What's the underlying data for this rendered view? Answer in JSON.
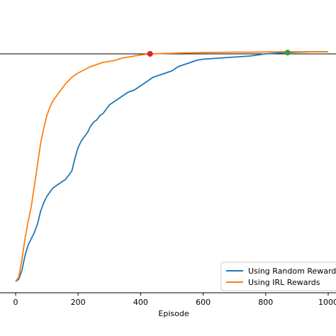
{
  "chart_data": {
    "type": "line",
    "xlabel": "Episode",
    "ylabel": "",
    "title": "",
    "xlim": [
      -5,
      1010
    ],
    "ylim": [
      0,
      1.12
    ],
    "x_ticks": [
      0,
      200,
      400,
      600,
      800,
      1000
    ],
    "x_tick_labels": [
      "0",
      "200",
      "400",
      "600",
      "800",
      "1000"
    ],
    "horizontal_line": {
      "y": 1.07
    },
    "legend": {
      "position": "lower-right"
    },
    "series": [
      {
        "name": "Using Random Reward",
        "color": "#1f77b4",
        "x": [
          0,
          10,
          20,
          30,
          40,
          50,
          60,
          70,
          80,
          90,
          100,
          110,
          120,
          130,
          140,
          150,
          160,
          170,
          180,
          190,
          200,
          210,
          220,
          230,
          240,
          250,
          260,
          270,
          280,
          290,
          300,
          320,
          340,
          360,
          380,
          400,
          420,
          440,
          460,
          480,
          500,
          520,
          540,
          560,
          580,
          600,
          650,
          700,
          750,
          800,
          850,
          870,
          900,
          950,
          1000
        ],
        "y": [
          0.0,
          0.01,
          0.05,
          0.12,
          0.17,
          0.2,
          0.23,
          0.27,
          0.33,
          0.37,
          0.4,
          0.42,
          0.44,
          0.45,
          0.46,
          0.47,
          0.48,
          0.5,
          0.52,
          0.58,
          0.63,
          0.66,
          0.68,
          0.7,
          0.73,
          0.75,
          0.76,
          0.78,
          0.79,
          0.81,
          0.83,
          0.85,
          0.87,
          0.89,
          0.9,
          0.92,
          0.94,
          0.96,
          0.97,
          0.98,
          0.99,
          1.01,
          1.02,
          1.03,
          1.04,
          1.045,
          1.05,
          1.055,
          1.06,
          1.07,
          1.075,
          1.076,
          1.078,
          1.08,
          1.08
        ]
      },
      {
        "name": "Using IRL Rewards",
        "color": "#ff7f0e",
        "x": [
          0,
          10,
          20,
          30,
          40,
          50,
          60,
          70,
          80,
          90,
          100,
          110,
          120,
          130,
          140,
          150,
          160,
          170,
          180,
          190,
          200,
          220,
          240,
          260,
          280,
          300,
          320,
          340,
          360,
          380,
          400,
          420,
          430,
          450,
          500,
          550,
          600,
          650,
          700,
          750,
          800,
          850,
          870,
          900,
          950,
          1000
        ],
        "y": [
          0.0,
          0.02,
          0.1,
          0.2,
          0.28,
          0.35,
          0.45,
          0.55,
          0.65,
          0.72,
          0.78,
          0.82,
          0.85,
          0.87,
          0.89,
          0.91,
          0.93,
          0.945,
          0.96,
          0.97,
          0.98,
          0.995,
          1.01,
          1.02,
          1.03,
          1.035,
          1.04,
          1.05,
          1.055,
          1.06,
          1.065,
          1.068,
          1.07,
          1.071,
          1.073,
          1.075,
          1.076,
          1.077,
          1.078,
          1.078,
          1.079,
          1.08,
          1.08,
          1.08,
          1.08,
          1.08
        ]
      }
    ],
    "markers": [
      {
        "x": 430,
        "y": 1.07,
        "color": "#d62728"
      },
      {
        "x": 870,
        "y": 1.076,
        "color": "#2ca02c"
      }
    ]
  }
}
